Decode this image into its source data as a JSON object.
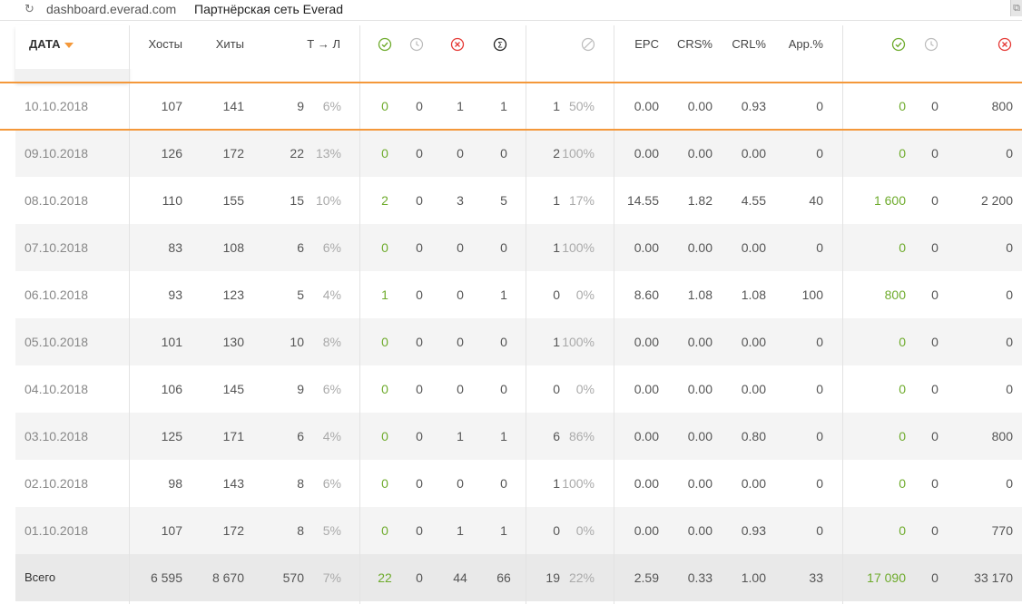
{
  "browser": {
    "domain": "dashboard.everad.com",
    "title": "Партнёрская сеть Everad"
  },
  "header": {
    "date": "ДАТА",
    "hosts": "Хосты",
    "hits": "Хиты",
    "tl": "Т → Л",
    "epc": "EPC",
    "crs": "CRS%",
    "crl": "CRL%",
    "app": "App.%"
  },
  "icons": {
    "approved": "check-circle-icon",
    "hold": "clock-icon",
    "rejected": "x-circle-icon",
    "total": "sigma-circle-icon",
    "trash": "slash-circle-icon",
    "money_approved": "check-circle-icon",
    "money_hold": "clock-icon",
    "money_rejected": "x-circle-icon"
  },
  "colors": {
    "accent": "#f4983a",
    "green": "#6eab2c",
    "red": "#e53935",
    "grey": "#aaaaaa"
  },
  "rows": [
    {
      "date": "10.10.2018",
      "hosts": "107",
      "hits": "141",
      "tl": "9",
      "tlp": "6%",
      "ap": "0",
      "ho": "0",
      "rj": "1",
      "tot": "1",
      "tr": "1",
      "trp": "50%",
      "epc": "0.00",
      "crs": "0.00",
      "crl": "0.93",
      "app": "0",
      "m_ap": "0",
      "m_ho": "0",
      "m_rj": "800"
    },
    {
      "date": "09.10.2018",
      "hosts": "126",
      "hits": "172",
      "tl": "22",
      "tlp": "13%",
      "ap": "0",
      "ho": "0",
      "rj": "0",
      "tot": "0",
      "tr": "2",
      "trp": "100%",
      "epc": "0.00",
      "crs": "0.00",
      "crl": "0.00",
      "app": "0",
      "m_ap": "0",
      "m_ho": "0",
      "m_rj": "0"
    },
    {
      "date": "08.10.2018",
      "hosts": "110",
      "hits": "155",
      "tl": "15",
      "tlp": "10%",
      "ap": "2",
      "ho": "0",
      "rj": "3",
      "tot": "5",
      "tr": "1",
      "trp": "17%",
      "epc": "14.55",
      "crs": "1.82",
      "crl": "4.55",
      "app": "40",
      "m_ap": "1 600",
      "m_ho": "0",
      "m_rj": "2 200"
    },
    {
      "date": "07.10.2018",
      "hosts": "83",
      "hits": "108",
      "tl": "6",
      "tlp": "6%",
      "ap": "0",
      "ho": "0",
      "rj": "0",
      "tot": "0",
      "tr": "1",
      "trp": "100%",
      "epc": "0.00",
      "crs": "0.00",
      "crl": "0.00",
      "app": "0",
      "m_ap": "0",
      "m_ho": "0",
      "m_rj": "0"
    },
    {
      "date": "06.10.2018",
      "hosts": "93",
      "hits": "123",
      "tl": "5",
      "tlp": "4%",
      "ap": "1",
      "ho": "0",
      "rj": "0",
      "tot": "1",
      "tr": "0",
      "trp": "0%",
      "epc": "8.60",
      "crs": "1.08",
      "crl": "1.08",
      "app": "100",
      "m_ap": "800",
      "m_ho": "0",
      "m_rj": "0"
    },
    {
      "date": "05.10.2018",
      "hosts": "101",
      "hits": "130",
      "tl": "10",
      "tlp": "8%",
      "ap": "0",
      "ho": "0",
      "rj": "0",
      "tot": "0",
      "tr": "1",
      "trp": "100%",
      "epc": "0.00",
      "crs": "0.00",
      "crl": "0.00",
      "app": "0",
      "m_ap": "0",
      "m_ho": "0",
      "m_rj": "0"
    },
    {
      "date": "04.10.2018",
      "hosts": "106",
      "hits": "145",
      "tl": "9",
      "tlp": "6%",
      "ap": "0",
      "ho": "0",
      "rj": "0",
      "tot": "0",
      "tr": "0",
      "trp": "0%",
      "epc": "0.00",
      "crs": "0.00",
      "crl": "0.00",
      "app": "0",
      "m_ap": "0",
      "m_ho": "0",
      "m_rj": "0"
    },
    {
      "date": "03.10.2018",
      "hosts": "125",
      "hits": "171",
      "tl": "6",
      "tlp": "4%",
      "ap": "0",
      "ho": "0",
      "rj": "1",
      "tot": "1",
      "tr": "6",
      "trp": "86%",
      "epc": "0.00",
      "crs": "0.00",
      "crl": "0.80",
      "app": "0",
      "m_ap": "0",
      "m_ho": "0",
      "m_rj": "800"
    },
    {
      "date": "02.10.2018",
      "hosts": "98",
      "hits": "143",
      "tl": "8",
      "tlp": "6%",
      "ap": "0",
      "ho": "0",
      "rj": "0",
      "tot": "0",
      "tr": "1",
      "trp": "100%",
      "epc": "0.00",
      "crs": "0.00",
      "crl": "0.00",
      "app": "0",
      "m_ap": "0",
      "m_ho": "0",
      "m_rj": "0"
    },
    {
      "date": "01.10.2018",
      "hosts": "107",
      "hits": "172",
      "tl": "8",
      "tlp": "5%",
      "ap": "0",
      "ho": "0",
      "rj": "1",
      "tot": "1",
      "tr": "0",
      "trp": "0%",
      "epc": "0.00",
      "crs": "0.00",
      "crl": "0.93",
      "app": "0",
      "m_ap": "0",
      "m_ho": "0",
      "m_rj": "770"
    }
  ],
  "total": {
    "date": "Всего",
    "hosts": "6 595",
    "hits": "8 670",
    "tl": "570",
    "tlp": "7%",
    "ap": "22",
    "ho": "0",
    "rj": "44",
    "tot": "66",
    "tr": "19",
    "trp": "22%",
    "epc": "2.59",
    "crs": "0.33",
    "crl": "1.00",
    "app": "33",
    "m_ap": "17 090",
    "m_ho": "0",
    "m_rj": "33 170"
  }
}
